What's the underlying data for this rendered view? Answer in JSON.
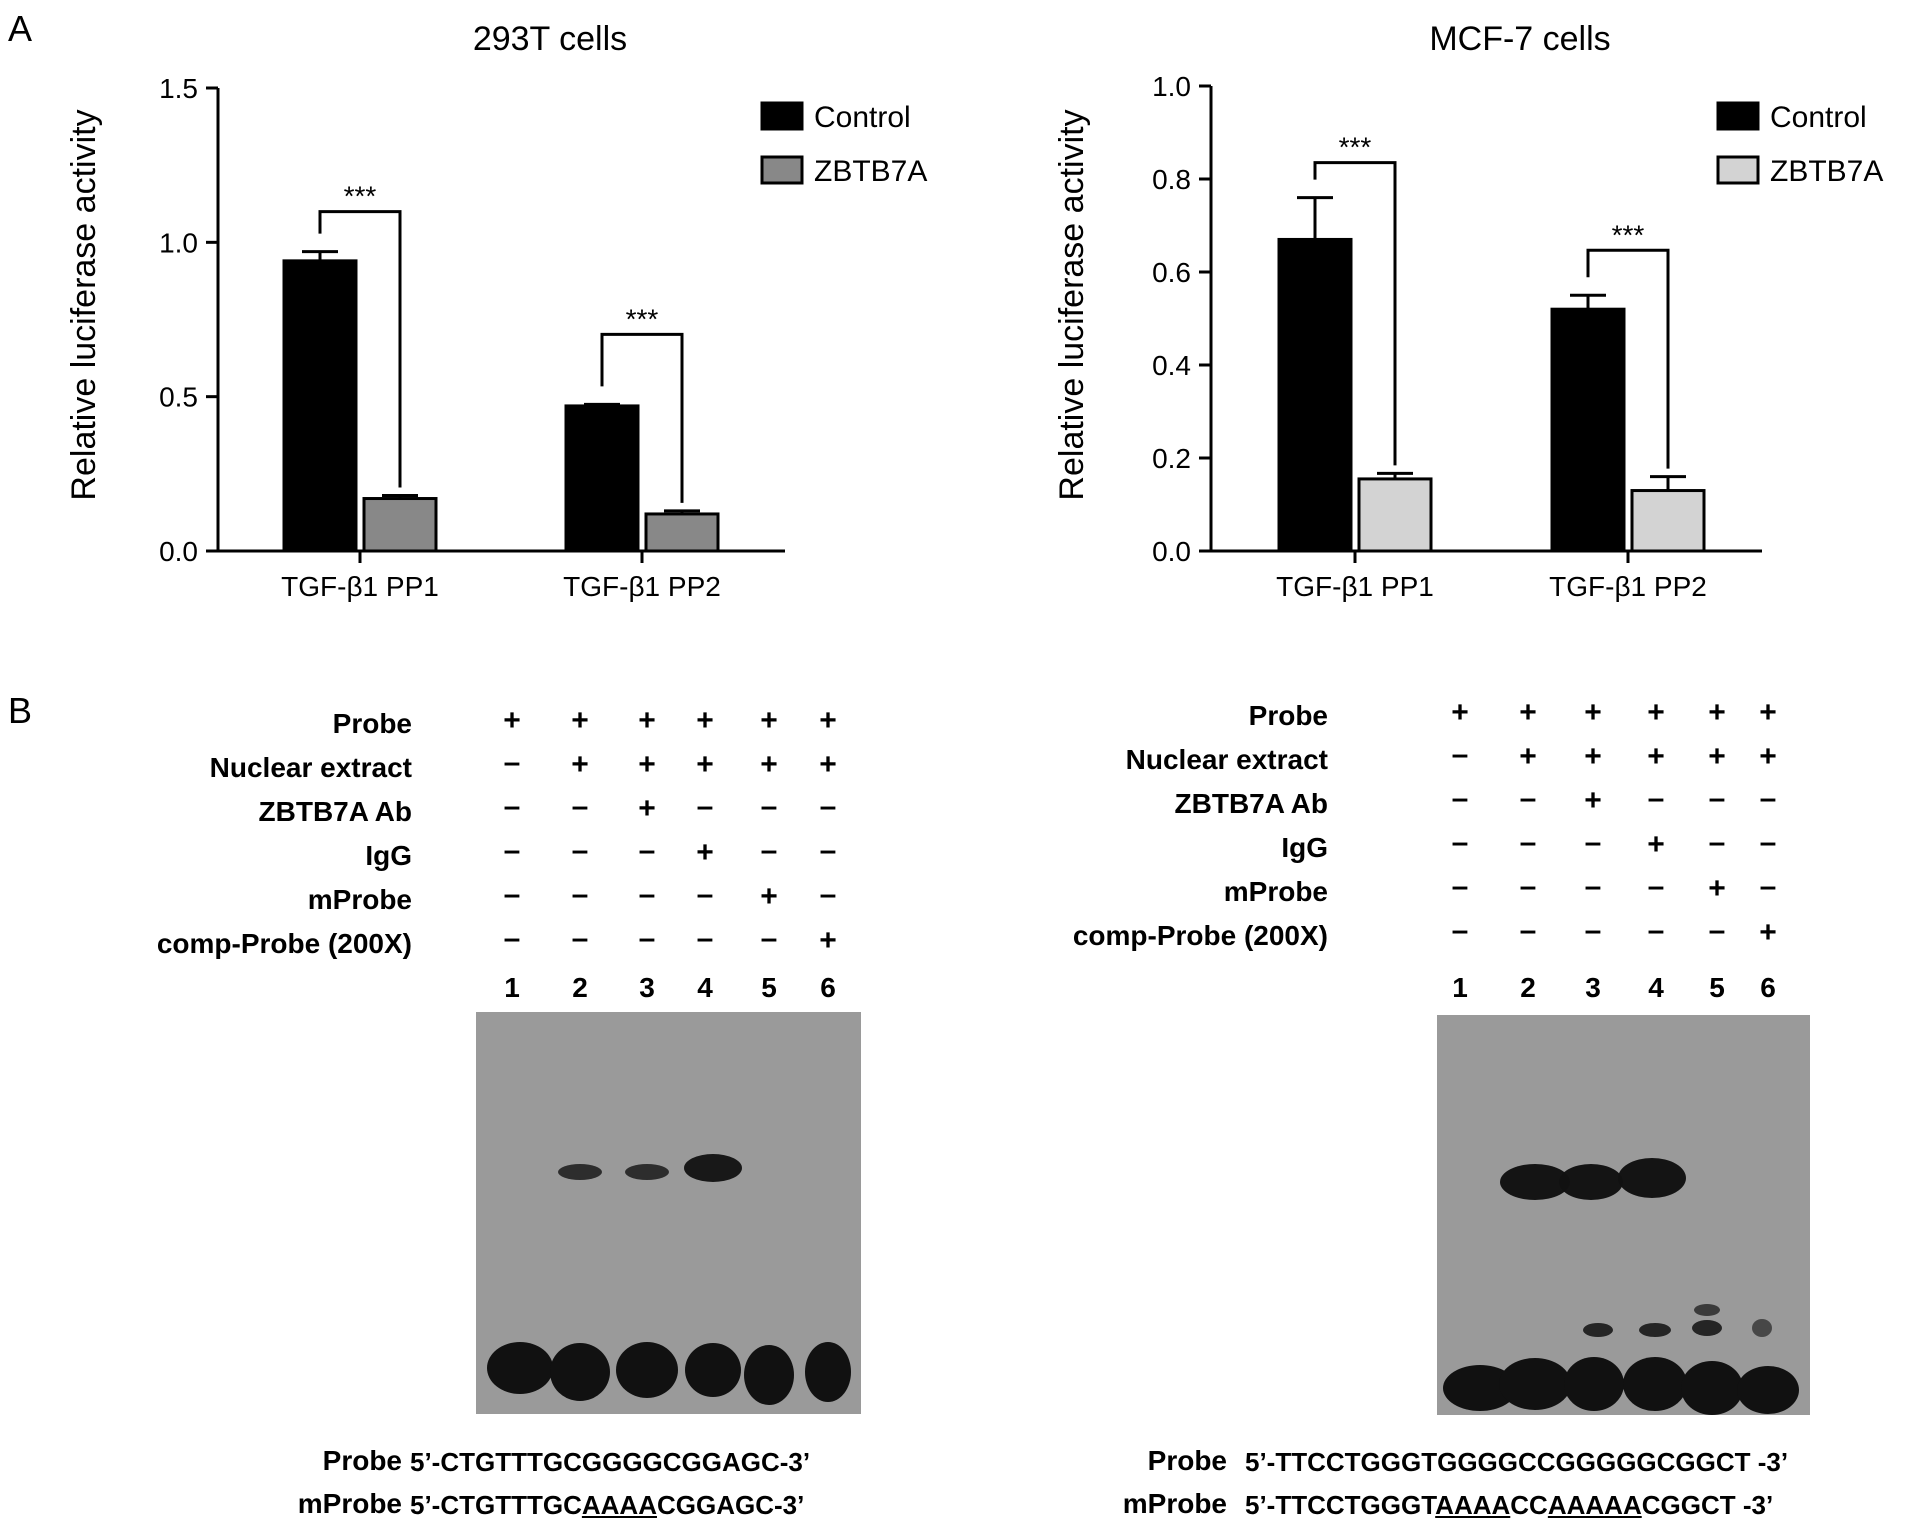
{
  "panels": {
    "a": "A",
    "b": "B"
  },
  "chart_data": [
    {
      "type": "bar",
      "title": "293T cells",
      "ylabel": "Relative luciferase activity",
      "xlabel": "",
      "ylim": [
        0,
        1.5
      ],
      "yticks": [
        "0.0",
        "0.5",
        "1.0",
        "1.5"
      ],
      "categories": [
        "TGF-β1 PP1",
        "TGF-β1 PP2"
      ],
      "series": [
        {
          "name": "Control",
          "color": "#000000",
          "values": [
            0.94,
            0.47
          ],
          "errors": [
            0.03,
            0.005
          ]
        },
        {
          "name": "ZBTB7A",
          "color": "#888888",
          "values": [
            0.17,
            0.12
          ],
          "errors": [
            0.01,
            0.01
          ]
        }
      ],
      "significance": [
        "***",
        "***"
      ],
      "legend_position": "top-right"
    },
    {
      "type": "bar",
      "title": "MCF-7 cells",
      "ylabel": "Relative luciferase activity",
      "xlabel": "",
      "ylim": [
        0,
        1.0
      ],
      "yticks": [
        "0.0",
        "0.2",
        "0.4",
        "0.6",
        "0.8",
        "1.0"
      ],
      "categories": [
        "TGF-β1 PP1",
        "TGF-β1 PP2"
      ],
      "series": [
        {
          "name": "Control",
          "color": "#000000",
          "values": [
            0.67,
            0.52
          ],
          "errors": [
            0.09,
            0.03
          ]
        },
        {
          "name": "ZBTB7A",
          "color": "#d3d3d3",
          "values": [
            0.155,
            0.13
          ],
          "errors": [
            0.012,
            0.03
          ]
        }
      ],
      "significance": [
        "***",
        "***"
      ],
      "legend_position": "top-right"
    }
  ],
  "emsa": {
    "conditions": [
      {
        "label": "Probe",
        "signs": [
          "+",
          "+",
          "+",
          "+",
          "+",
          "+"
        ]
      },
      {
        "label": "Nuclear extract",
        "signs": [
          "–",
          "+",
          "+",
          "+",
          "+",
          "+"
        ]
      },
      {
        "label": "ZBTB7A  Ab",
        "signs": [
          "–",
          "–",
          "+",
          "–",
          "–",
          "–"
        ]
      },
      {
        "label": "IgG",
        "signs": [
          "–",
          "–",
          "–",
          "+",
          "–",
          "–"
        ]
      },
      {
        "label": "mProbe",
        "signs": [
          "–",
          "–",
          "–",
          "–",
          "+",
          "–"
        ]
      },
      {
        "label": "comp-Probe (200X)",
        "signs": [
          "–",
          "–",
          "–",
          "–",
          "–",
          "+"
        ]
      }
    ],
    "lanes": [
      "1",
      "2",
      "3",
      "4",
      "5",
      "6"
    ],
    "left_sequences": {
      "probe_label": "Probe",
      "probe_seq": "5’-CTGTTTGCGGGGCGGAGC-3’",
      "mprobe_label": "mProbe",
      "mprobe_pre": "5’-CTGTTTGC",
      "mprobe_mut": "AAAA",
      "mprobe_post": "CGGAGC-3’"
    },
    "right_sequences": {
      "probe_label": "Probe",
      "probe_seq": "5’-TTCCTGGGTGGGGCCGGGGGCGGCT -3’",
      "mprobe_label": "mProbe",
      "mprobe_pre": "5’-TTCCTGGGT",
      "mprobe_mut1": "AAAA",
      "mprobe_mid": "CC",
      "mprobe_mut2": "AAAAA",
      "mprobe_post": "CGGCT -3’"
    }
  }
}
